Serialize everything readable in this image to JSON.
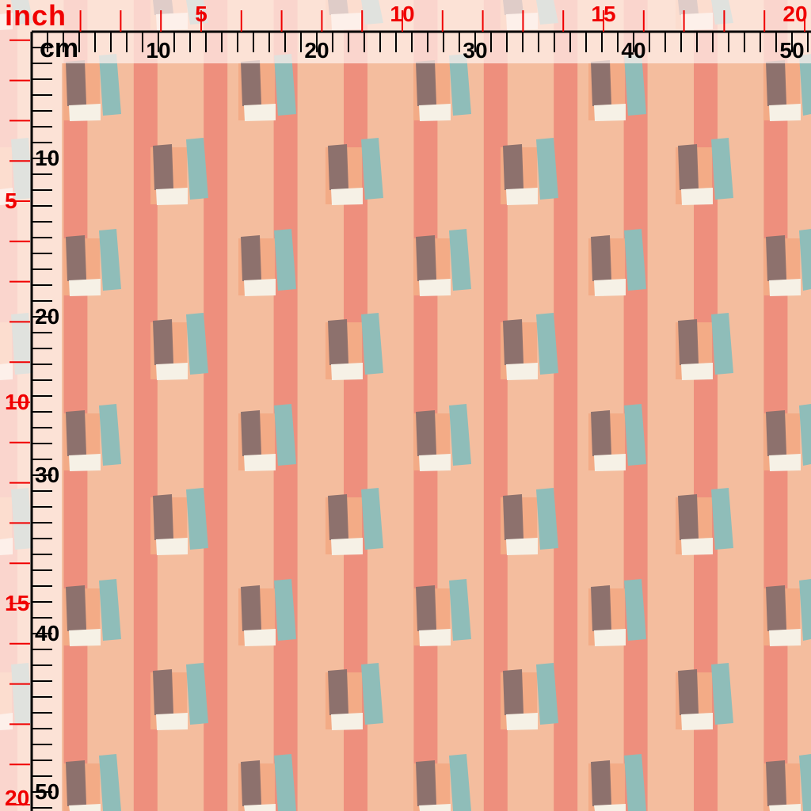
{
  "swatch": {
    "colors": {
      "base": "#f4bd9e",
      "stripe": "#ee8f7d",
      "backing": "#f3ab86",
      "brown": "#8d716d",
      "teal": "#8fbdb9",
      "white": "#f6f1e6"
    }
  },
  "ruler": {
    "inch_unit": "inch",
    "cm_unit": "cm",
    "inch_labels": [
      "5",
      "10",
      "15",
      "20"
    ],
    "cm_labels": [
      "10",
      "20",
      "30",
      "40",
      "50"
    ],
    "inch_color": "#f00000",
    "cm_color": "#000000"
  }
}
